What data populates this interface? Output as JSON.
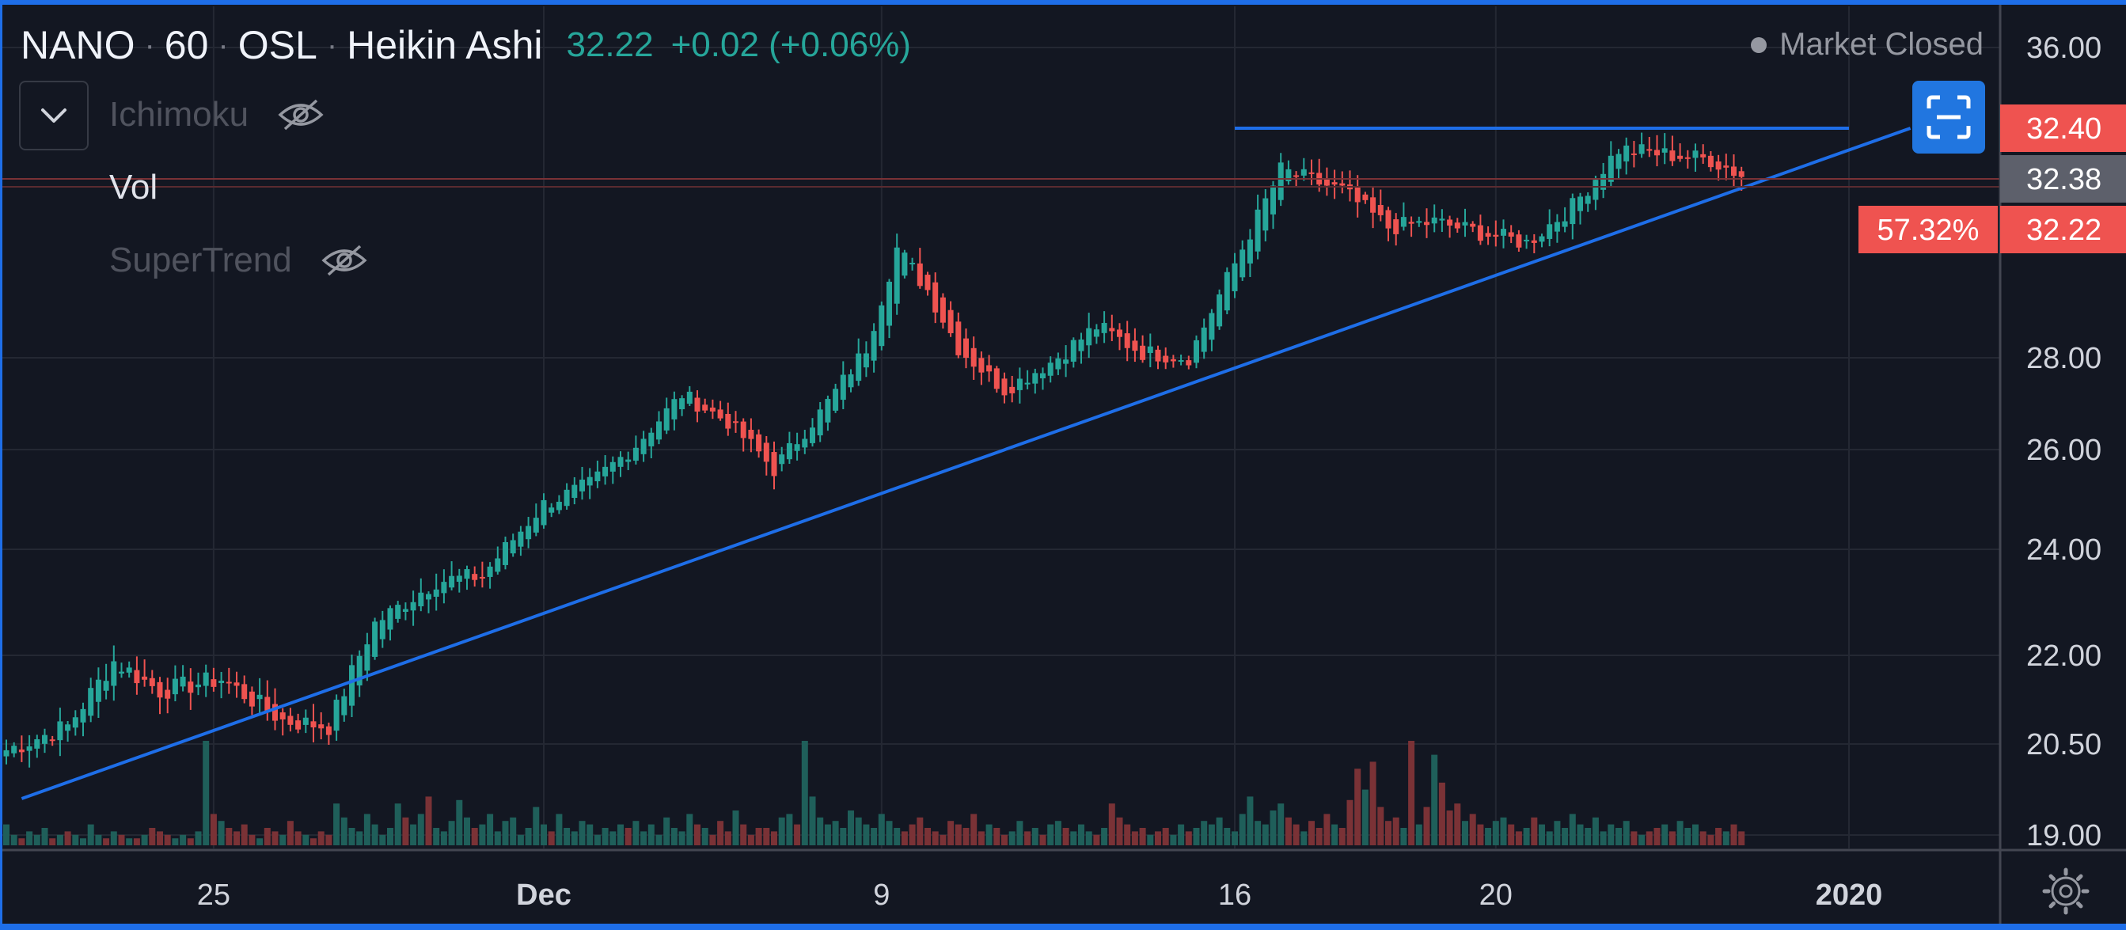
{
  "legend": {
    "symbol": "NANO",
    "interval": "60",
    "exchange": "OSL",
    "chart_style": "Heikin Ashi",
    "last_price": "32.22",
    "change": "+0.02 (+0.06%)"
  },
  "indicators": [
    {
      "name": "Ichimoku",
      "visible": false
    },
    {
      "name": "Vol",
      "visible": true
    },
    {
      "name": "SuperTrend",
      "visible": false
    }
  ],
  "market_status": "Market Closed",
  "price_tags": {
    "top_line": "32.40",
    "prev_close": "32.38",
    "last": "32.22",
    "percent": "57.32%"
  },
  "colors": {
    "background": "#131722",
    "up": "#26a69a",
    "down": "#ef5350",
    "trendline": "#1e6ee8",
    "accent": "#2176e0"
  },
  "chart_data": {
    "type": "candlestick",
    "style": "Heikin Ashi",
    "x_ticks": [
      "25",
      "Dec",
      "9",
      "16",
      "20",
      "2020"
    ],
    "y_ticks": [
      "36.00",
      "32.40",
      "32.38",
      "32.22",
      "28.00",
      "26.00",
      "24.00",
      "22.00",
      "20.50",
      "19.00"
    ],
    "y_range": [
      19,
      36
    ],
    "price_path": [
      [
        0,
        20.4
      ],
      [
        8,
        20.8
      ],
      [
        14,
        21.9
      ],
      [
        20,
        21.4
      ],
      [
        28,
        21.6
      ],
      [
        36,
        20.9
      ],
      [
        42,
        20.8
      ],
      [
        48,
        22.6
      ],
      [
        56,
        23.4
      ],
      [
        62,
        23.5
      ],
      [
        70,
        24.9
      ],
      [
        76,
        25.3
      ],
      [
        82,
        26.1
      ],
      [
        88,
        27.2
      ],
      [
        94,
        26.6
      ],
      [
        100,
        25.6
      ],
      [
        106,
        26.8
      ],
      [
        112,
        28.2
      ],
      [
        116,
        30.1
      ],
      [
        120,
        29.3
      ],
      [
        124,
        28.2
      ],
      [
        130,
        27.3
      ],
      [
        136,
        27.9
      ],
      [
        142,
        28.6
      ],
      [
        148,
        28.1
      ],
      [
        154,
        28.0
      ],
      [
        160,
        29.8
      ],
      [
        166,
        31.6
      ],
      [
        174,
        31.2
      ],
      [
        180,
        30.5
      ],
      [
        186,
        30.6
      ],
      [
        192,
        30.4
      ],
      [
        198,
        30.2
      ],
      [
        204,
        30.9
      ],
      [
        210,
        32.0
      ],
      [
        216,
        31.9
      ],
      [
        222,
        31.8
      ],
      [
        226,
        31.5
      ]
    ],
    "volume": [
      6,
      3,
      2,
      4,
      3,
      5,
      2,
      3,
      4,
      3,
      2,
      6,
      3,
      2,
      4,
      3,
      2,
      2,
      3,
      5,
      4,
      3,
      2,
      3,
      2,
      4,
      30,
      9,
      7,
      5,
      4,
      6,
      3,
      2,
      5,
      4,
      3,
      7,
      4,
      3,
      2,
      4,
      3,
      12,
      8,
      5,
      4,
      9,
      6,
      3,
      5,
      12,
      8,
      6,
      9,
      14,
      5,
      4,
      7,
      13,
      8,
      5,
      6,
      9,
      4,
      7,
      8,
      3,
      5,
      11,
      6,
      4,
      9,
      5,
      4,
      7,
      6,
      3,
      5,
      4,
      6,
      5,
      7,
      4,
      6,
      3,
      8,
      5,
      4,
      9,
      6,
      5,
      3,
      7,
      4,
      10,
      6,
      3,
      5,
      5,
      4,
      8,
      9,
      6,
      30,
      14,
      8,
      6,
      7,
      5,
      10,
      8,
      6,
      5,
      9,
      7,
      5,
      4,
      6,
      8,
      5,
      4,
      3,
      7,
      6,
      5,
      9,
      4,
      6,
      5,
      3,
      4,
      7,
      4,
      5,
      3,
      6,
      7,
      5,
      4,
      6,
      4,
      3,
      5,
      12,
      8,
      6,
      4,
      5,
      3,
      4,
      5,
      3,
      6,
      4,
      5,
      7,
      6,
      8,
      5,
      4,
      9,
      14,
      7,
      6,
      10,
      12,
      8,
      6,
      4,
      7,
      5,
      9,
      6,
      5,
      13,
      22,
      16,
      24,
      11,
      7,
      8,
      5,
      30,
      6,
      11,
      26,
      18,
      10,
      12,
      7,
      9,
      6,
      5,
      7,
      8,
      6,
      4,
      5,
      8,
      6,
      4,
      7,
      5,
      9,
      6,
      5,
      8,
      4,
      6,
      5,
      7,
      4,
      3,
      4,
      5,
      6,
      4,
      7,
      5,
      6,
      4,
      3,
      5,
      4,
      6,
      4,
      3,
      5,
      4
    ],
    "annotations": [
      {
        "type": "trendline",
        "from": [
          2,
          19.6
        ],
        "to": [
          248,
          32.4
        ]
      },
      {
        "type": "horizontal_segment",
        "price": 32.4,
        "from_x": 160,
        "to_x": 240
      }
    ]
  }
}
